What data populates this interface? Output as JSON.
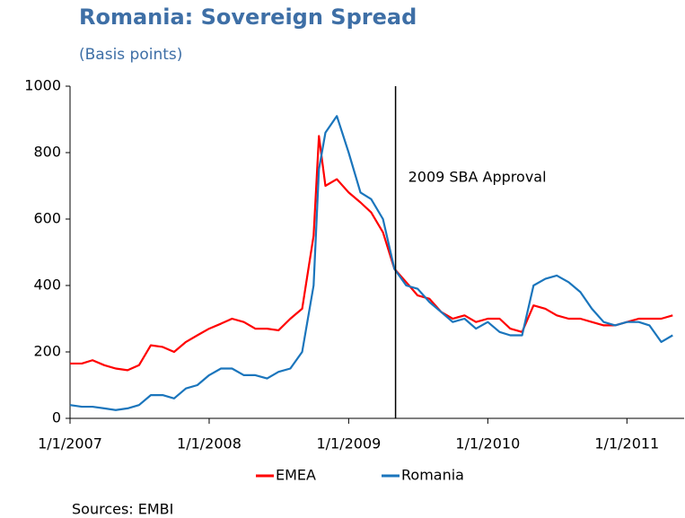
{
  "chart_data": {
    "type": "line",
    "title": "Romania: Sovereign Spread",
    "subtitle": "(Basis points)",
    "source": "Sources: EMBI",
    "x": [
      "2007-01-01",
      "2007-02-01",
      "2007-03-01",
      "2007-04-01",
      "2007-05-01",
      "2007-06-01",
      "2007-07-01",
      "2007-08-01",
      "2007-09-01",
      "2007-10-01",
      "2007-11-01",
      "2007-12-01",
      "2008-01-01",
      "2008-02-01",
      "2008-03-01",
      "2008-04-01",
      "2008-05-01",
      "2008-06-01",
      "2008-07-01",
      "2008-08-01",
      "2008-09-01",
      "2008-10-01",
      "2008-10-15",
      "2008-11-01",
      "2008-12-01",
      "2009-01-01",
      "2009-02-01",
      "2009-03-01",
      "2009-04-01",
      "2009-05-01",
      "2009-06-01",
      "2009-07-01",
      "2009-08-01",
      "2009-09-01",
      "2009-10-01",
      "2009-11-01",
      "2009-12-01",
      "2010-01-01",
      "2010-02-01",
      "2010-03-01",
      "2010-04-01",
      "2010-05-01",
      "2010-06-01",
      "2010-07-01",
      "2010-08-01",
      "2010-09-01",
      "2010-10-01",
      "2010-11-01",
      "2010-12-01",
      "2011-01-01",
      "2011-02-01",
      "2011-03-01",
      "2011-04-01",
      "2011-05-01"
    ],
    "series": [
      {
        "name": "EMEA",
        "color": "#ff0000",
        "values": [
          165,
          165,
          175,
          160,
          150,
          145,
          160,
          220,
          215,
          200,
          230,
          250,
          270,
          285,
          300,
          290,
          270,
          270,
          265,
          300,
          330,
          550,
          850,
          700,
          720,
          680,
          650,
          620,
          560,
          450,
          410,
          370,
          360,
          320,
          300,
          310,
          290,
          300,
          300,
          270,
          260,
          340,
          330,
          310,
          300,
          300,
          290,
          280,
          280,
          290,
          300,
          300,
          300,
          310
        ]
      },
      {
        "name": "Romania",
        "color": "#1a75bc",
        "values": [
          40,
          35,
          35,
          30,
          25,
          30,
          40,
          70,
          70,
          60,
          90,
          100,
          130,
          150,
          150,
          130,
          130,
          120,
          140,
          150,
          200,
          400,
          750,
          860,
          910,
          800,
          680,
          660,
          600,
          450,
          400,
          390,
          350,
          320,
          290,
          300,
          270,
          290,
          260,
          250,
          250,
          400,
          420,
          430,
          410,
          380,
          330,
          290,
          280,
          290,
          290,
          280,
          230,
          250
        ]
      }
    ],
    "xlim": [
      "2007-01-01",
      "2011-05-31"
    ],
    "xticks": [
      {
        "value": "2007-01-01",
        "label": "1/1/2007"
      },
      {
        "value": "2008-01-01",
        "label": "1/1/2008"
      },
      {
        "value": "2009-01-01",
        "label": "1/1/2009"
      },
      {
        "value": "2010-01-01",
        "label": "1/1/2010"
      },
      {
        "value": "2011-01-01",
        "label": "1/1/2011"
      }
    ],
    "ylim": [
      0,
      1000
    ],
    "yticks": [
      0,
      200,
      400,
      600,
      800,
      1000
    ],
    "vline": {
      "x": "2009-05-04",
      "label": "2009 SBA Approval",
      "color": "#000000"
    },
    "legend": "bottom",
    "grid": false
  }
}
